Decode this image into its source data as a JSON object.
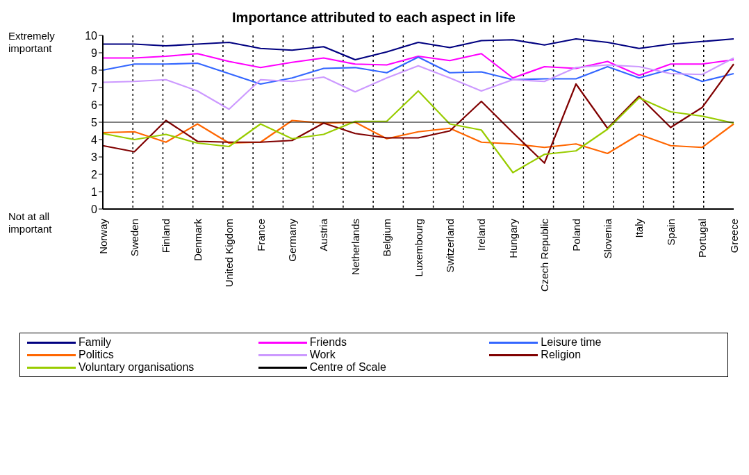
{
  "chart_data": {
    "type": "line",
    "title": "Importance attributed to each aspect in life",
    "categories": [
      "Norway",
      "Sweden",
      "Finland",
      "Denmark",
      "United Kigdom",
      "France",
      "Germany",
      "Austria",
      "Netherlands",
      "Belgium",
      "Luxembourg",
      "Switzerland",
      "Ireland",
      "Hungary",
      "Czech Republic",
      "Poland",
      "Slovenia",
      "Italy",
      "Spain",
      "Portugal",
      "Greece"
    ],
    "series": [
      {
        "name": "Family",
        "color": "#000080",
        "values": [
          9.5,
          9.5,
          9.4,
          9.5,
          9.6,
          9.25,
          9.15,
          9.35,
          8.6,
          9.05,
          9.6,
          9.3,
          9.7,
          9.75,
          9.45,
          9.8,
          9.6,
          9.25,
          9.5,
          9.65,
          9.8
        ]
      },
      {
        "name": "Friends",
        "color": "#ff00ff",
        "values": [
          8.7,
          8.7,
          8.8,
          8.95,
          8.5,
          8.15,
          8.45,
          8.7,
          8.35,
          8.3,
          8.8,
          8.55,
          8.95,
          7.55,
          8.2,
          8.1,
          8.5,
          7.7,
          8.35,
          8.35,
          8.6
        ]
      },
      {
        "name": "Leisure time",
        "color": "#3366ff",
        "values": [
          8.0,
          8.35,
          8.35,
          8.4,
          7.8,
          7.2,
          7.55,
          8.1,
          8.15,
          7.85,
          8.75,
          7.85,
          7.9,
          7.45,
          7.5,
          7.5,
          8.2,
          7.55,
          8.05,
          7.35,
          7.8
        ]
      },
      {
        "name": "Politics",
        "color": "#ff6600",
        "values": [
          4.4,
          4.45,
          3.85,
          4.9,
          3.8,
          3.85,
          5.1,
          4.95,
          5.0,
          4.05,
          4.45,
          4.65,
          3.85,
          3.75,
          3.55,
          3.75,
          3.2,
          4.3,
          3.65,
          3.55,
          4.9
        ]
      },
      {
        "name": "Work",
        "color": "#cc99ff",
        "values": [
          7.3,
          7.35,
          7.45,
          6.8,
          5.75,
          7.45,
          7.35,
          7.6,
          6.75,
          7.55,
          8.25,
          7.55,
          6.8,
          7.45,
          7.35,
          8.15,
          8.3,
          8.2,
          7.8,
          7.75,
          8.7
        ]
      },
      {
        "name": "Religion",
        "color": "#800000",
        "values": [
          3.65,
          3.3,
          5.1,
          3.9,
          3.85,
          3.85,
          3.95,
          4.95,
          4.35,
          4.1,
          4.1,
          4.5,
          6.2,
          4.4,
          2.65,
          7.2,
          4.65,
          6.5,
          4.7,
          5.85,
          8.35
        ]
      },
      {
        "name": "Voluntary organisations",
        "color": "#99cc00",
        "values": [
          4.35,
          4.0,
          4.3,
          3.8,
          3.6,
          4.9,
          4.05,
          4.3,
          5.05,
          5.05,
          6.8,
          4.9,
          4.55,
          2.1,
          3.15,
          3.35,
          4.6,
          6.4,
          5.6,
          5.35,
          4.95
        ]
      },
      {
        "name": "Centre of Scale",
        "color": "#000000",
        "values": [
          5,
          5,
          5,
          5,
          5,
          5,
          5,
          5,
          5,
          5,
          5,
          5,
          5,
          5,
          5,
          5,
          5,
          5,
          5,
          5,
          5
        ]
      }
    ],
    "ylim": [
      0,
      10
    ],
    "yticks": [
      0,
      1,
      2,
      3,
      4,
      5,
      6,
      7,
      8,
      9,
      10
    ],
    "annotations": [
      "Extremely important",
      "Not at all important"
    ],
    "grid": "x",
    "legend": "bottom",
    "marker": "none",
    "line_style": "solid"
  }
}
